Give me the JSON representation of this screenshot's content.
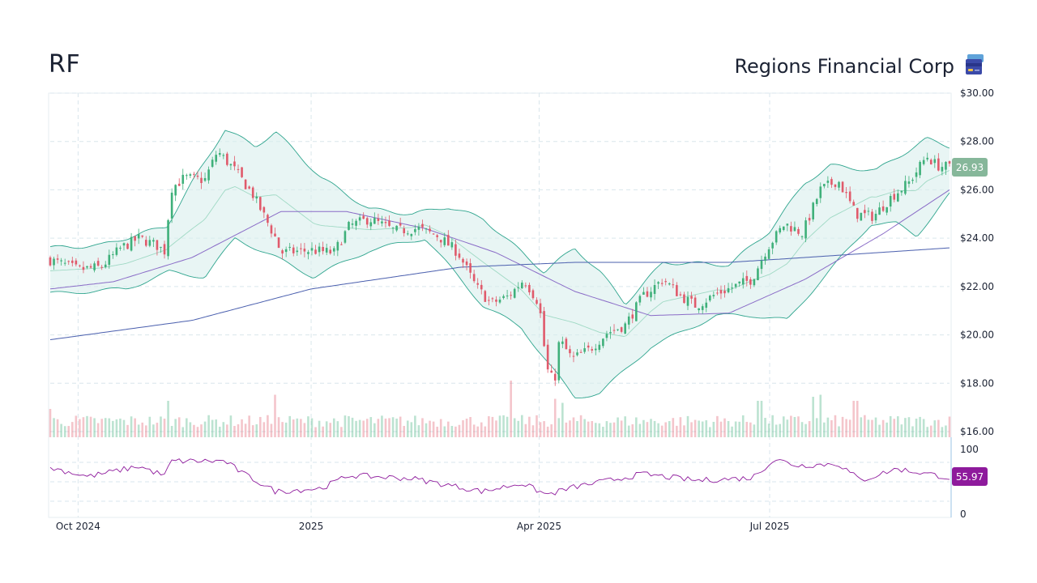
{
  "header": {
    "ticker": "RF",
    "company": "Regions Financial Corp",
    "icon": "bank-card-icon"
  },
  "colors": {
    "up": "#3fb07a",
    "down": "#e05a6b",
    "bb_line": "#2fa58e",
    "bb_fill": "#d9efec",
    "bb_mid": "#9fd9c4",
    "ma_fast": "#8a6cc7",
    "ma_slow": "#4a5fae",
    "rsi": "#8e1a9c",
    "price_tag": "#86b79a",
    "rsi_tag": "#8e1a9c",
    "grid": "#d9e6ec"
  },
  "chart_data": {
    "type": "candlestick",
    "title": "RF",
    "subtitle": "Regions Financial Corp",
    "x_ticks": [
      "Oct 2024",
      "2025",
      "Apr 2025",
      "Jul 2025"
    ],
    "x_range": [
      "2024-09-20",
      "2025-09-10"
    ],
    "price_axis": {
      "ticks": [
        "$30.00",
        "$28.00",
        "$26.00",
        "$24.00",
        "$22.00",
        "$20.00",
        "$18.00",
        "$16.00"
      ],
      "range": [
        16,
        30
      ]
    },
    "rsi_axis": {
      "ticks": [
        "100",
        "0"
      ],
      "range": [
        0,
        100
      ]
    },
    "last_price": "26.93",
    "last_rsi": "55.97",
    "close_path": [
      [
        "2024-09-20",
        23.1
      ],
      [
        "2024-10-01",
        22.7
      ],
      [
        "2024-10-10",
        22.8
      ],
      [
        "2024-10-18",
        23.6
      ],
      [
        "2024-10-25",
        24.0
      ],
      [
        "2024-11-01",
        23.7
      ],
      [
        "2024-11-05",
        23.4
      ],
      [
        "2024-11-06",
        26.0
      ],
      [
        "2024-11-12",
        26.5
      ],
      [
        "2024-11-20",
        26.4
      ],
      [
        "2024-11-25",
        27.6
      ],
      [
        "2024-12-02",
        26.8
      ],
      [
        "2024-12-09",
        25.8
      ],
      [
        "2024-12-18",
        24.0
      ],
      [
        "2024-12-20",
        23.4
      ],
      [
        "2025-01-01",
        23.5
      ],
      [
        "2025-01-10",
        23.4
      ],
      [
        "2025-01-16",
        24.5
      ],
      [
        "2025-01-24",
        24.8
      ],
      [
        "2025-02-03",
        24.3
      ],
      [
        "2025-02-12",
        24.4
      ],
      [
        "2025-02-20",
        24.1
      ],
      [
        "2025-02-28",
        23.4
      ],
      [
        "2025-03-07",
        22.0
      ],
      [
        "2025-03-13",
        21.3
      ],
      [
        "2025-03-20",
        21.6
      ],
      [
        "2025-03-26",
        22.3
      ],
      [
        "2025-04-01",
        21.3
      ],
      [
        "2025-04-04",
        18.6
      ],
      [
        "2025-04-07",
        18.0
      ],
      [
        "2025-04-09",
        19.8
      ],
      [
        "2025-04-14",
        19.0
      ],
      [
        "2025-04-21",
        19.4
      ],
      [
        "2025-04-28",
        20.1
      ],
      [
        "2025-05-05",
        20.4
      ],
      [
        "2025-05-12",
        21.6
      ],
      [
        "2025-05-20",
        22.3
      ],
      [
        "2025-05-27",
        21.6
      ],
      [
        "2025-06-02",
        21.2
      ],
      [
        "2025-06-10",
        21.7
      ],
      [
        "2025-06-17",
        22.0
      ],
      [
        "2025-06-24",
        22.3
      ],
      [
        "2025-06-30",
        23.6
      ],
      [
        "2025-07-07",
        24.6
      ],
      [
        "2025-07-14",
        24.2
      ],
      [
        "2025-07-21",
        26.0
      ],
      [
        "2025-07-28",
        26.4
      ],
      [
        "2025-08-04",
        25.0
      ],
      [
        "2025-08-11",
        24.9
      ],
      [
        "2025-08-18",
        25.7
      ],
      [
        "2025-08-25",
        26.3
      ],
      [
        "2025-09-01",
        27.4
      ],
      [
        "2025-09-05",
        27.0
      ],
      [
        "2025-09-10",
        26.93
      ]
    ],
    "ma_slow_path": [
      [
        "2024-09-20",
        19.8
      ],
      [
        "2024-11-15",
        20.6
      ],
      [
        "2025-01-01",
        21.9
      ],
      [
        "2025-03-01",
        22.8
      ],
      [
        "2025-04-15",
        23.0
      ],
      [
        "2025-06-15",
        23.0
      ],
      [
        "2025-07-15",
        23.2
      ],
      [
        "2025-09-10",
        23.6
      ]
    ],
    "ma_fast_path": [
      [
        "2024-09-20",
        21.9
      ],
      [
        "2024-10-15",
        22.2
      ],
      [
        "2024-11-15",
        23.2
      ],
      [
        "2024-12-20",
        25.1
      ],
      [
        "2025-01-15",
        25.1
      ],
      [
        "2025-02-15",
        24.4
      ],
      [
        "2025-03-15",
        23.4
      ],
      [
        "2025-04-15",
        21.8
      ],
      [
        "2025-05-15",
        20.8
      ],
      [
        "2025-06-15",
        20.9
      ],
      [
        "2025-07-15",
        22.3
      ],
      [
        "2025-08-15",
        24.2
      ],
      [
        "2025-09-10",
        26.0
      ]
    ],
    "bb_upper_path": [
      [
        "2024-09-20",
        23.6
      ],
      [
        "2024-10-10",
        23.7
      ],
      [
        "2024-11-05",
        24.5
      ],
      [
        "2024-11-15",
        26.3
      ],
      [
        "2024-11-28",
        28.5
      ],
      [
        "2024-12-10",
        27.8
      ],
      [
        "2024-12-18",
        28.4
      ],
      [
        "2025-01-05",
        26.5
      ],
      [
        "2025-01-24",
        25.2
      ],
      [
        "2025-02-10",
        25.0
      ],
      [
        "2025-02-24",
        25.3
      ],
      [
        "2025-03-10",
        24.8
      ],
      [
        "2025-04-03",
        22.6
      ],
      [
        "2025-04-15",
        23.6
      ],
      [
        "2025-04-25",
        22.6
      ],
      [
        "2025-05-05",
        21.3
      ],
      [
        "2025-05-20",
        23.0
      ],
      [
        "2025-06-15",
        22.9
      ],
      [
        "2025-07-01",
        24.3
      ],
      [
        "2025-07-15",
        26.3
      ],
      [
        "2025-07-25",
        27.0
      ],
      [
        "2025-08-12",
        26.8
      ],
      [
        "2025-09-01",
        28.1
      ],
      [
        "2025-09-10",
        27.8
      ]
    ],
    "bb_lower_path": [
      [
        "2024-09-20",
        21.7
      ],
      [
        "2024-10-20",
        21.9
      ],
      [
        "2024-11-06",
        22.6
      ],
      [
        "2024-11-20",
        22.4
      ],
      [
        "2024-12-02",
        24.0
      ],
      [
        "2024-12-18",
        23.2
      ],
      [
        "2025-01-02",
        22.4
      ],
      [
        "2025-01-24",
        23.5
      ],
      [
        "2025-02-15",
        24.0
      ],
      [
        "2025-03-10",
        21.2
      ],
      [
        "2025-03-25",
        20.3
      ],
      [
        "2025-04-07",
        18.5
      ],
      [
        "2025-04-15",
        17.4
      ],
      [
        "2025-04-25",
        17.6
      ],
      [
        "2025-05-15",
        19.5
      ],
      [
        "2025-06-10",
        20.8
      ],
      [
        "2025-06-25",
        20.8
      ],
      [
        "2025-07-08",
        20.6
      ],
      [
        "2025-07-20",
        22.1
      ],
      [
        "2025-08-10",
        24.6
      ],
      [
        "2025-08-20",
        24.6
      ],
      [
        "2025-08-28",
        24.1
      ],
      [
        "2025-09-10",
        25.8
      ]
    ],
    "rsi_path": [
      [
        "2024-09-20",
        72
      ],
      [
        "2024-10-05",
        58
      ],
      [
        "2024-10-25",
        74
      ],
      [
        "2024-11-05",
        58
      ],
      [
        "2024-11-06",
        82
      ],
      [
        "2024-11-28",
        82
      ],
      [
        "2024-12-05",
        63
      ],
      [
        "2024-12-18",
        35
      ],
      [
        "2025-01-05",
        40
      ],
      [
        "2025-01-16",
        60
      ],
      [
        "2025-02-10",
        55
      ],
      [
        "2025-03-10",
        35
      ],
      [
        "2025-03-25",
        48
      ],
      [
        "2025-04-04",
        30
      ],
      [
        "2025-04-15",
        42
      ],
      [
        "2025-05-12",
        62
      ],
      [
        "2025-06-02",
        52
      ],
      [
        "2025-06-24",
        56
      ],
      [
        "2025-07-03",
        85
      ],
      [
        "2025-07-12",
        75
      ],
      [
        "2025-07-28",
        78
      ],
      [
        "2025-08-06",
        52
      ],
      [
        "2025-08-20",
        70
      ],
      [
        "2025-09-05",
        60
      ],
      [
        "2025-09-10",
        56
      ]
    ],
    "volume_spikes": [
      [
        "2024-09-20",
        0.7
      ],
      [
        "2024-11-06",
        0.9
      ],
      [
        "2024-12-18",
        1.05
      ],
      [
        "2025-03-21",
        1.4
      ],
      [
        "2025-04-07",
        0.95
      ],
      [
        "2025-04-10",
        0.85
      ],
      [
        "2025-06-27",
        0.9
      ],
      [
        "2025-07-18",
        1.0
      ],
      [
        "2025-07-21",
        1.05
      ],
      [
        "2025-08-04",
        0.9
      ]
    ]
  }
}
